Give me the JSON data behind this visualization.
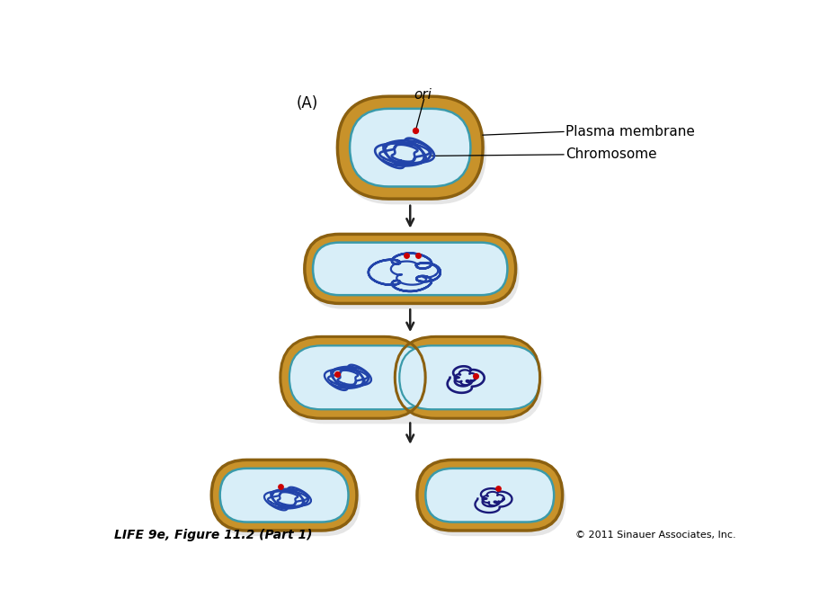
{
  "bg_color": "#ffffff",
  "cell_outer_color": "#C8922A",
  "cell_outer_color2": "#D4A84B",
  "cell_inner_color": "#D8EEF8",
  "cell_inner_color_light": "#E8F4FC",
  "cell_membrane_color": "#3A9AAA",
  "cell_border_color": "#8B6010",
  "chromosome_color_light": "#2244AA",
  "chromosome_color_dark": "#1A1A7A",
  "ori_dot_color": "#CC0000",
  "arrow_color": "#222222",
  "label_A": "(A)",
  "label_ori": "ori",
  "label_plasma": "Plasma membrane",
  "label_chromosome": "Chromosome",
  "footer_left": "LIFE 9e, Figure 11.2 (Part 1)",
  "footer_right": "© 2011 Sinauer Associates, Inc.",
  "label_fontsize": 11,
  "footer_fontsize": 10
}
